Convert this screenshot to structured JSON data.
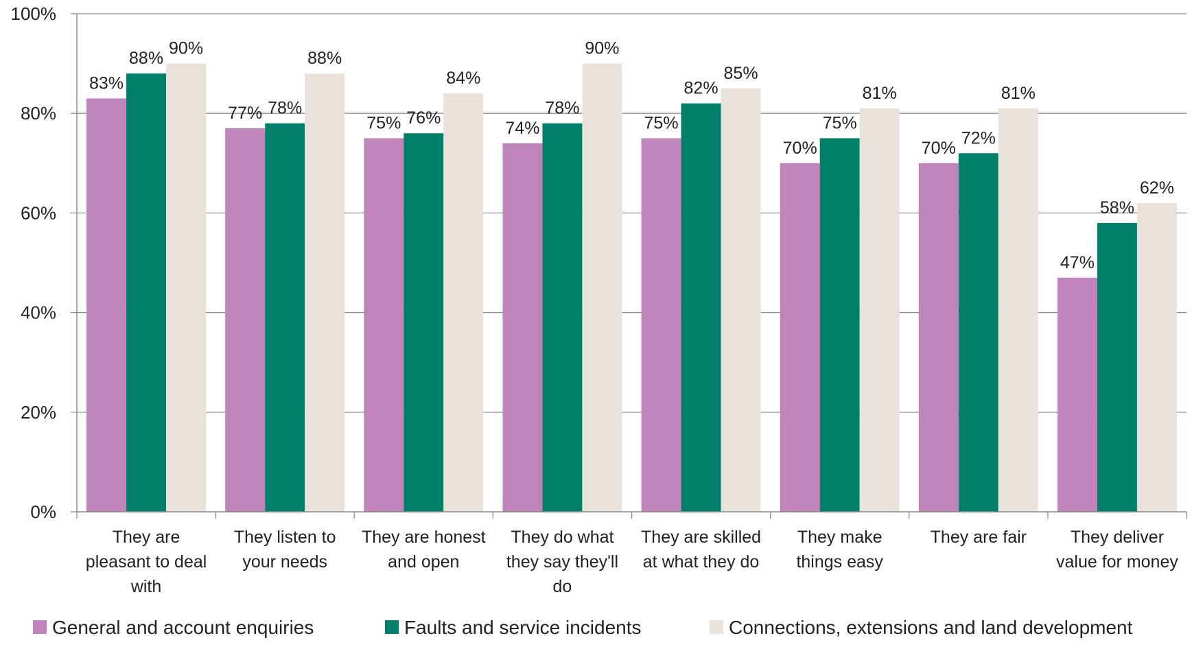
{
  "chart_data": {
    "type": "bar",
    "title": "",
    "xlabel": "",
    "ylabel": "",
    "ylim": [
      0,
      100
    ],
    "yticks": [
      0,
      20,
      40,
      60,
      80,
      100
    ],
    "ytick_labels": [
      "0%",
      "20%",
      "40%",
      "60%",
      "80%",
      "100%"
    ],
    "value_suffix": "%",
    "grid": true,
    "legend_position": "bottom",
    "categories": [
      [
        "They are",
        "pleasant to deal",
        "with"
      ],
      [
        "They listen to",
        "your needs"
      ],
      [
        "They are honest",
        "and open"
      ],
      [
        "They do what",
        "they say they'll",
        "do"
      ],
      [
        "They are skilled",
        "at what they do"
      ],
      [
        "They make",
        "things easy"
      ],
      [
        "They are fair"
      ],
      [
        "They deliver",
        "value for money"
      ]
    ],
    "series": [
      {
        "name": "General and account enquiries",
        "color": "#c084bb",
        "values": [
          83,
          77,
          75,
          74,
          75,
          70,
          70,
          47
        ]
      },
      {
        "name": "Faults and service incidents",
        "color": "#00806a",
        "values": [
          88,
          78,
          76,
          78,
          82,
          75,
          72,
          58
        ]
      },
      {
        "name": "Connections, extensions and land development",
        "color": "#e9e2da",
        "values": [
          90,
          88,
          84,
          90,
          85,
          81,
          81,
          62
        ]
      }
    ]
  }
}
